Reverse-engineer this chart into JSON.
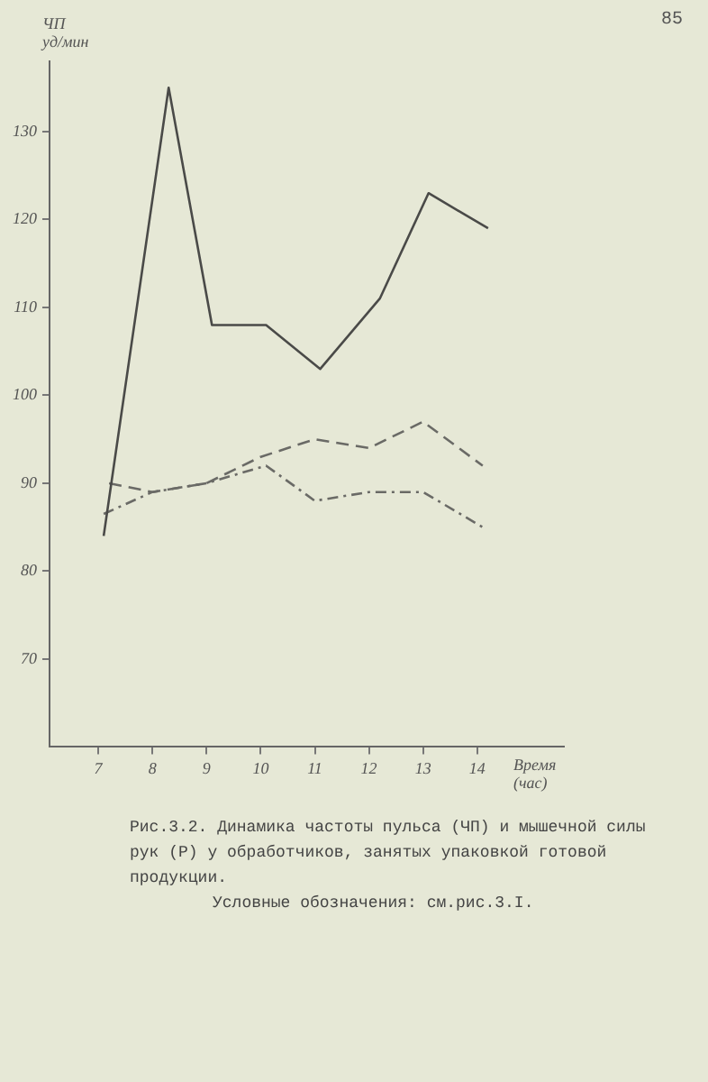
{
  "chart_data": {
    "type": "line",
    "ylabel": "ЧП уд/мин",
    "xlabel": "Время (час)",
    "xlim": [
      6.1,
      15.6
    ],
    "xticks": [
      7,
      8,
      9,
      10,
      11,
      12,
      13,
      14
    ],
    "ylim": [
      60,
      138
    ],
    "yticks": [
      70,
      80,
      90,
      100,
      110,
      120,
      130
    ],
    "grid": false,
    "legend": false,
    "marker": "none",
    "series": [
      {
        "color": "#4a4a48",
        "line_style": "solid",
        "x": [
          7.1,
          8.3,
          9.1,
          10.1,
          11.1,
          12.2,
          13.1,
          14.2
        ],
        "values": [
          84,
          135,
          108,
          108,
          103,
          111,
          123,
          119
        ]
      },
      {
        "color": "#6a6a66",
        "line_style": "dashed",
        "x": [
          7.2,
          8,
          9,
          10,
          11,
          12,
          13,
          14.1
        ],
        "values": [
          90,
          89,
          90,
          93,
          95,
          94,
          97,
          92
        ]
      },
      {
        "color": "#6a6a66",
        "line_style": "dotted",
        "x": [
          7.1,
          8,
          9,
          10.1,
          11,
          12,
          13,
          14.1
        ],
        "values": [
          86.5,
          89,
          90,
          92,
          88,
          89,
          89,
          85
        ]
      }
    ],
    "annotations": [
      "85",
      "Рис.3.2. Динамика частоты пульса (ЧП) и мышечной силы рук (Р) у обработчиков, занятых упаковкой готовой продукции.",
      "Условные обозначения: см.рис.3.I."
    ]
  }
}
